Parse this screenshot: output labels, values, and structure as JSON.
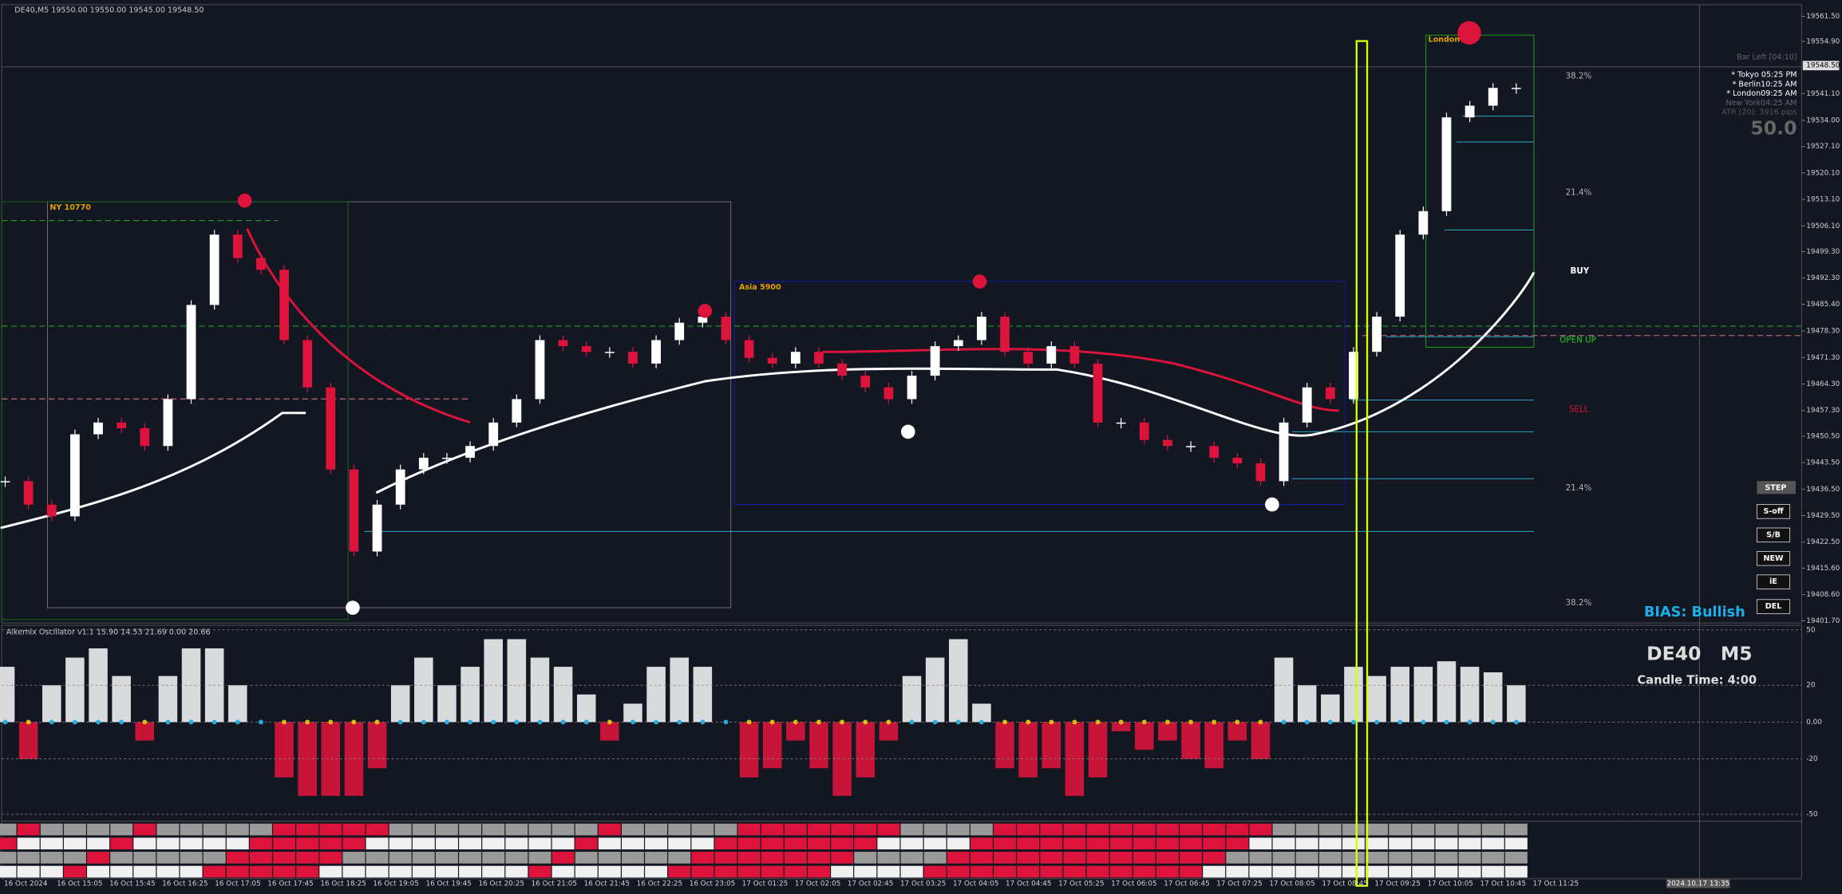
{
  "header": {
    "symbol_line": "DE40,M5  19550.00 19550.00 19545.00 19548.50"
  },
  "chart_data": {
    "type": "candlestick",
    "price": {
      "values": [
        19438.6,
        19432.4,
        19429.3,
        19451.0,
        19454.1,
        19452.6,
        19447.9,
        19460.3,
        19485.2,
        19503.8,
        19497.6,
        19494.5,
        19475.9,
        19463.4,
        19441.7,
        19420.0,
        19432.4,
        19441.7,
        19444.8,
        19444.8,
        19447.9,
        19454.1,
        19460.3,
        19475.9,
        19474.3,
        19472.8,
        19472.8,
        19469.7,
        19475.9,
        19480.5,
        19482.1,
        19475.9,
        19471.2,
        19469.7,
        19472.8,
        19469.7,
        19466.5,
        19463.4,
        19460.3,
        19466.5,
        19474.3,
        19475.9,
        19482.1,
        19472.8,
        19469.7,
        19474.3,
        19469.7,
        19454.1,
        19454.1,
        19449.5,
        19447.9,
        19447.9,
        19444.8,
        19443.3,
        19438.6,
        19454.1,
        19463.4,
        19460.3,
        19472.8,
        19482.1,
        19503.8,
        19510.0,
        19534.8,
        19537.9,
        19542.6,
        19542.6
      ]
    },
    "up_color": "#ffffff",
    "down_color": "#dc143c",
    "ylim": [
      19401.1,
      19564.6
    ],
    "yticks": [
      {
        "value": 19561.5,
        "label": "19561.50"
      },
      {
        "value": 19554.9,
        "label": "19554.90"
      },
      {
        "value": 19541.1,
        "label": "19541.10"
      },
      {
        "value": 19534.0,
        "label": "19534.00"
      },
      {
        "value": 19527.1,
        "label": "19527.10"
      },
      {
        "value": 19520.1,
        "label": "19520.10"
      },
      {
        "value": 19513.1,
        "label": "19513.10"
      },
      {
        "value": 19506.1,
        "label": "19506.10"
      },
      {
        "value": 19499.3,
        "label": "19499.30"
      },
      {
        "value": 19492.3,
        "label": "19492.30"
      },
      {
        "value": 19485.4,
        "label": "19485.40"
      },
      {
        "value": 19478.3,
        "label": "19478.30"
      },
      {
        "value": 19471.3,
        "label": "19471.30"
      },
      {
        "value": 19464.3,
        "label": "19464.30"
      },
      {
        "value": 19457.3,
        "label": "19457.30"
      },
      {
        "value": 19450.5,
        "label": "19450.50"
      },
      {
        "value": 19443.5,
        "label": "19443.50"
      },
      {
        "value": 19436.5,
        "label": "19436.50"
      },
      {
        "value": 19429.5,
        "label": "19429.50"
      },
      {
        "value": 19422.5,
        "label": "19422.50"
      },
      {
        "value": 19415.6,
        "label": "19415.60"
      },
      {
        "value": 19408.6,
        "label": "19408.60"
      },
      {
        "value": 19401.7,
        "label": "19401.70"
      }
    ],
    "current_price": {
      "value": 19548.5,
      "label": "19548.50"
    },
    "time_labels": [
      "16 Oct 2024",
      "16 Oct 15:05",
      "16 Oct 15:45",
      "16 Oct 16:25",
      "16 Oct 17:05",
      "16 Oct 17:45",
      "16 Oct 18:25",
      "16 Oct 19:05",
      "16 Oct 19:45",
      "16 Oct 20:25",
      "16 Oct 21:05",
      "16 Oct 21:45",
      "16 Oct 22:25",
      "16 Oct 23:05",
      "17 Oct 01:25",
      "17 Oct 02:05",
      "17 Oct 02:45",
      "17 Oct 03:25",
      "17 Oct 04:05",
      "17 Oct 04:45",
      "17 Oct 05:25",
      "17 Oct 06:05",
      "17 Oct 06:45",
      "17 Oct 07:25",
      "17 Oct 08:05",
      "17 Oct 08:45",
      "17 Oct 09:25",
      "17 Oct 10:05",
      "17 Oct 10:45",
      "17 Oct 11:25"
    ],
    "time_cursor": "2024.10.17 13:35",
    "sessions": [
      "NY 10770",
      "Asia 5900",
      "London"
    ],
    "levels": [
      "38.2%",
      "21.4%",
      "BUY",
      "OPEN UP",
      "SELL",
      "21.4%",
      "38.2%"
    ]
  },
  "oscillator": {
    "title": "Alkemix Oscillator v1.1 15.90 14.53 21.69 0.00 20.66",
    "values": [
      30,
      -20,
      20,
      35,
      40,
      25,
      -10,
      25,
      40,
      40,
      20,
      0,
      -30,
      -40,
      -40,
      -40,
      -25,
      20,
      35,
      20,
      30,
      45,
      45,
      35,
      30,
      15,
      -10,
      10,
      30,
      35,
      30,
      0,
      -30,
      -25,
      -10,
      -25,
      -40,
      -30,
      -10,
      25,
      35,
      45,
      10,
      -25,
      -30,
      -25,
      -40,
      -30,
      -5,
      -15,
      -10,
      -20,
      -25,
      -10,
      -20,
      35,
      20,
      15,
      30,
      25,
      30,
      30,
      33,
      30,
      27,
      20
    ],
    "ylim": [
      -53.8,
      52.5
    ],
    "yticks": [
      50,
      20,
      {
        "value": 0,
        "label": "0.00"
      },
      -20,
      -50
    ]
  },
  "info": {
    "bar_left": "Bar Left [04:10]",
    "tokyo": "* Tokyo 05:25 PM",
    "berlin": "* Berlin10:25 AM",
    "london": "* London09:25 AM",
    "newyork": "New York04:25 AM",
    "atr": "ATR (20): 3916 pips",
    "score": "50.0",
    "symbol": "DE40",
    "timeframe": "M5",
    "candle_time": "Candle Time: 4:00",
    "bias": "BIAS: Bullish"
  },
  "buttons": [
    "STEP",
    "S-off",
    "S/B",
    "NEW",
    "iE",
    "DEL"
  ]
}
